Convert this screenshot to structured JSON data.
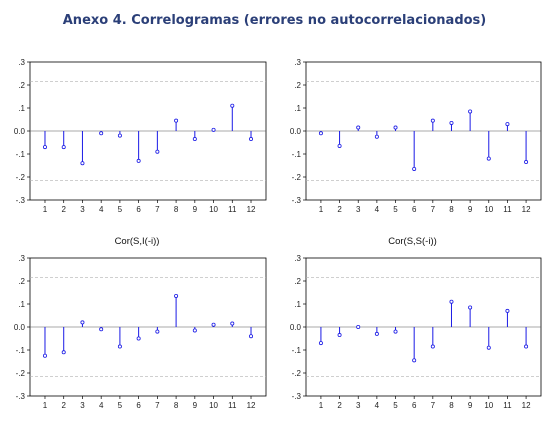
{
  "heading": "Anexo 4. Correlogramas (errores no autocorrelacionados)",
  "colors": {
    "heading": "#2b3f78",
    "series": "#1a1ae6",
    "dashed": "#b3b3b3",
    "frame": "#000000"
  },
  "chart_data": [
    {
      "type": "stem",
      "title": "",
      "xlabel": "",
      "ylabel": "",
      "categories": [
        "1",
        "2",
        "3",
        "4",
        "5",
        "6",
        "7",
        "8",
        "9",
        "10",
        "11",
        "12"
      ],
      "ylim": [
        -0.3,
        0.3
      ],
      "yticks": [
        ".3",
        ".2",
        ".1",
        "0.0",
        "-.1",
        "-.2",
        "-.3"
      ],
      "bands": [
        0.215,
        -0.215
      ],
      "values": [
        -0.07,
        -0.07,
        -0.14,
        -0.01,
        -0.02,
        -0.13,
        -0.09,
        0.045,
        -0.035,
        0.005,
        0.11,
        -0.035
      ]
    },
    {
      "type": "stem",
      "title": "",
      "xlabel": "",
      "ylabel": "",
      "categories": [
        "1",
        "2",
        "3",
        "4",
        "5",
        "6",
        "7",
        "8",
        "9",
        "10",
        "11",
        "12"
      ],
      "ylim": [
        -0.3,
        0.3
      ],
      "yticks": [
        ".3",
        ".2",
        ".1",
        "0.0",
        "-.1",
        "-.2",
        "-.3"
      ],
      "bands": [
        0.215,
        -0.215
      ],
      "values": [
        -0.01,
        -0.065,
        0.015,
        -0.025,
        0.015,
        -0.165,
        0.045,
        0.035,
        0.085,
        -0.12,
        0.03,
        -0.135
      ]
    },
    {
      "type": "stem",
      "title": "Cor(S,I(-i))",
      "xlabel": "",
      "ylabel": "",
      "categories": [
        "1",
        "2",
        "3",
        "4",
        "5",
        "6",
        "7",
        "8",
        "9",
        "10",
        "11",
        "12"
      ],
      "ylim": [
        -0.3,
        0.3
      ],
      "yticks": [
        ".3",
        ".2",
        ".1",
        "0.0",
        "-.1",
        "-.2",
        "-.3"
      ],
      "bands": [
        0.215,
        -0.215
      ],
      "values": [
        -0.125,
        -0.11,
        0.02,
        -0.01,
        -0.085,
        -0.05,
        -0.02,
        0.135,
        -0.015,
        0.01,
        0.015,
        -0.04
      ]
    },
    {
      "type": "stem",
      "title": "Cor(S,S(-i))",
      "xlabel": "",
      "ylabel": "",
      "categories": [
        "1",
        "2",
        "3",
        "4",
        "5",
        "6",
        "7",
        "8",
        "9",
        "10",
        "11",
        "12"
      ],
      "ylim": [
        -0.3,
        0.3
      ],
      "yticks": [
        ".3",
        ".2",
        ".1",
        "0.0",
        "-.1",
        "-.2",
        "-.3"
      ],
      "bands": [
        0.215,
        -0.215
      ],
      "values": [
        -0.07,
        -0.035,
        0.0,
        -0.03,
        -0.02,
        -0.145,
        -0.085,
        0.11,
        0.085,
        -0.09,
        0.07,
        -0.085
      ]
    }
  ]
}
